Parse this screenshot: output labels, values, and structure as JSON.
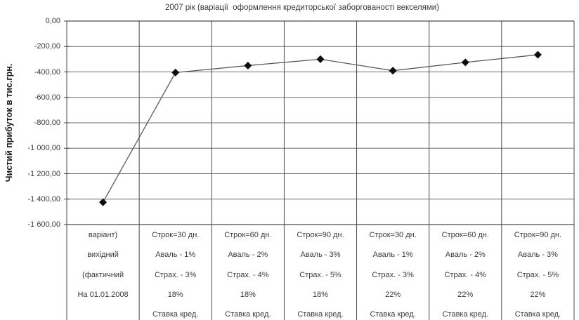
{
  "chart_data": {
    "type": "line",
    "title": "2007 рік (варіації  оформлення кредиторської заборгованості векселями)",
    "ylabel": "Чистий прибуток в тис.грн.",
    "xlabel": "",
    "ylim": [
      -1600,
      0
    ],
    "ytick_step": 200,
    "ytick_labels": [
      "0,00",
      "-200,00",
      "-400,00",
      "-600,00",
      "-800,00",
      "-1 000,00",
      "-1 200,00",
      "-1 400,00",
      "-1 600,00"
    ],
    "grid": true,
    "legend_position": "none",
    "marker_shape": "diamond",
    "categories": [
      [
        "варіант)",
        "вихідний",
        "(фактичний",
        "На 01.01.2008",
        ""
      ],
      [
        "Строк=30 дн.",
        "Аваль - 1%",
        "Страх. - 3%",
        "18%",
        "Ставка кред."
      ],
      [
        "Строк=60 дн.",
        "Аваль - 2%",
        "Страх. - 4%",
        "18%",
        "Ставка кред."
      ],
      [
        "Строк=90 дн.",
        "Аваль - 3%",
        "Страх. - 5%",
        "18%",
        "Ставка кред."
      ],
      [
        "Строк=30 дн.",
        "Аваль - 1%",
        "Страх. - 3%",
        "22%",
        "Ставка кред."
      ],
      [
        "Строк=60 дн.",
        "Аваль - 2%",
        "Страх. - 4%",
        "22%",
        "Ставка кред."
      ],
      [
        "Строк=90 дн.",
        "Аваль - 3%",
        "Страх. - 5%",
        "22%",
        "Ставка кред."
      ]
    ],
    "values": [
      -1425,
      -405,
      -350,
      -300,
      -390,
      -325,
      -265
    ],
    "colors": {
      "background": "#ffffff",
      "text": "#3b3b3b",
      "gridline": "#6e6e6e",
      "frame": "#4a4a4a",
      "series_line": "#5a5a5a",
      "marker": "#0d0d0d"
    }
  }
}
